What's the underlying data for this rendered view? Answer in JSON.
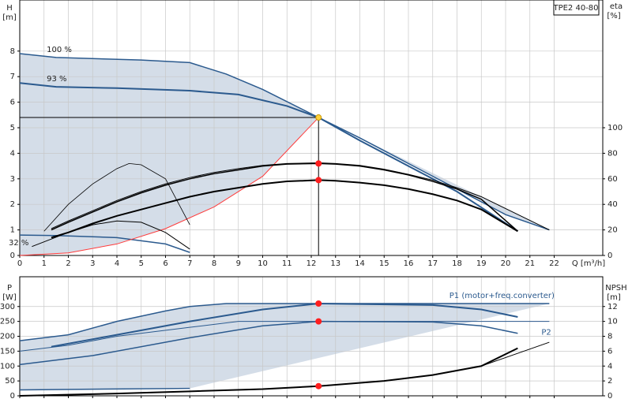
{
  "chart_data": [
    {
      "type": "line",
      "title": "TPE2 40-80",
      "ylabel": "H",
      "yunit": "[m]",
      "y2label": "eta",
      "y2unit": "[%]",
      "xlabel": "Q [m³/h]",
      "xlim": [
        0,
        24
      ],
      "xticks": [
        0,
        1,
        2,
        3,
        4,
        5,
        6,
        7,
        8,
        9,
        10,
        11,
        12,
        13,
        14,
        15,
        16,
        17,
        18,
        19,
        20,
        21,
        22
      ],
      "ylim": [
        0,
        10
      ],
      "yticks": [
        0,
        1,
        2,
        3,
        4,
        5,
        6,
        7,
        8
      ],
      "y2lim": [
        0,
        200
      ],
      "y2ticks": [
        0,
        20,
        40,
        60,
        80,
        100
      ],
      "grid": true,
      "series": [
        {
          "name": "100 %",
          "color": "#2b5a8e",
          "width": 1.5,
          "x": [
            0,
            1.5,
            5,
            7,
            8.5,
            10,
            12.3,
            14,
            16,
            18,
            20,
            21.8
          ],
          "values": [
            7.9,
            7.75,
            7.65,
            7.55,
            7.1,
            6.5,
            5.4,
            4.6,
            3.6,
            2.6,
            1.6,
            1.0
          ]
        },
        {
          "name": "93 %",
          "color": "#2b5a8e",
          "width": 2,
          "x": [
            0,
            1.5,
            4,
            7,
            9,
            11,
            12.3,
            14,
            16,
            18,
            20.5
          ],
          "values": [
            6.75,
            6.6,
            6.55,
            6.45,
            6.3,
            5.85,
            5.4,
            4.5,
            3.5,
            2.5,
            0.95
          ]
        },
        {
          "name": "32 %",
          "color": "#2b5a8e",
          "width": 1.5,
          "x": [
            0,
            1.5,
            4,
            6,
            7
          ],
          "values": [
            0.8,
            0.78,
            0.7,
            0.45,
            0.12
          ]
        },
        {
          "color": "#ff3b3b",
          "width": 1,
          "x": [
            0,
            2,
            4,
            6,
            8,
            10,
            12.3
          ],
          "values": [
            0,
            0.1,
            0.45,
            1.05,
            1.9,
            3.1,
            5.4
          ]
        },
        {
          "color": "#000000",
          "width": 1,
          "axis": "y2",
          "x": [
            1.3,
            2,
            3,
            4,
            5,
            6,
            7,
            8,
            9,
            10,
            11,
            12.3,
            13,
            14,
            15,
            16,
            17,
            18,
            19,
            21.8
          ],
          "values": [
            21,
            27,
            35,
            43,
            50,
            56,
            61,
            65,
            68,
            70.5,
            72,
            72.5,
            72,
            70.5,
            67.5,
            63.5,
            59,
            53,
            46,
            20
          ]
        },
        {
          "color": "#000000",
          "width": 1.5,
          "axis": "y2",
          "x": [
            1.3,
            2,
            3,
            4,
            5,
            6,
            7,
            8,
            9,
            10,
            11,
            12.3,
            13,
            14,
            15,
            16,
            17,
            18,
            19,
            20.5
          ],
          "values": [
            20,
            26,
            34,
            42,
            49,
            55,
            60,
            64,
            67,
            70,
            71.5,
            72,
            71.5,
            70,
            67,
            63,
            58,
            52,
            44,
            19
          ]
        },
        {
          "color": "#000000",
          "width": 2,
          "axis": "y2",
          "x": [
            1.3,
            2,
            3,
            4,
            5,
            6,
            7,
            8,
            9,
            10,
            11,
            12.3,
            13,
            14,
            15,
            16,
            17,
            18,
            19,
            20.5
          ],
          "values": [
            14,
            18,
            25,
            31,
            36,
            41,
            46,
            50,
            53,
            56,
            58,
            59,
            58.5,
            57,
            55,
            52,
            48,
            43,
            36,
            19
          ]
        },
        {
          "color": "#000000",
          "width": 0.8,
          "axis": "y2",
          "x": [
            1,
            2,
            3,
            4,
            4.5,
            5,
            6,
            7
          ],
          "values": [
            19,
            40,
            56,
            68,
            72,
            71,
            60,
            24
          ]
        },
        {
          "color": "#000000",
          "width": 1,
          "axis": "y2",
          "x": [
            0.5,
            2,
            3,
            4,
            5,
            6,
            7
          ],
          "values": [
            7,
            18,
            24,
            27,
            26,
            18,
            5
          ]
        }
      ],
      "markers": [
        {
          "x": 12.3,
          "value": 5.4,
          "color": "#ffd23c"
        },
        {
          "x": 12.3,
          "value": 72,
          "color": "#ff1e1e",
          "axis": "y2"
        },
        {
          "x": 12.3,
          "value": 59,
          "color": "#ff1e1e",
          "axis": "y2"
        }
      ]
    },
    {
      "type": "line",
      "ylabel": "P",
      "yunit": "[W]",
      "y2label": "NPSH",
      "y2unit": "[m]",
      "xlim": [
        0,
        24
      ],
      "xticks": [
        0,
        1,
        2,
        3,
        4,
        5,
        6,
        7,
        8,
        9,
        10,
        11,
        12,
        13,
        14,
        15,
        16,
        17,
        18,
        19,
        20,
        21,
        22
      ],
      "ylim": [
        0,
        400
      ],
      "yticks": [
        0,
        50,
        100,
        150,
        200,
        250,
        300
      ],
      "y2lim": [
        0,
        16
      ],
      "y2ticks": [
        0,
        2,
        4,
        6,
        8,
        10,
        12
      ],
      "grid": true,
      "series": [
        {
          "name": "P1 (motor+freq.converter)",
          "color": "#2b5a8e",
          "width": 1.5,
          "x": [
            0,
            2,
            4,
            6,
            7,
            8.5,
            21.8
          ],
          "values": [
            185,
            205,
            250,
            285,
            300,
            310,
            310
          ]
        },
        {
          "color": "#2b5a8e",
          "width": 2,
          "x": [
            1.3,
            4,
            7,
            10,
            12.3,
            17,
            19,
            20.5
          ],
          "values": [
            165,
            205,
            250,
            290,
            310,
            305,
            290,
            265
          ]
        },
        {
          "name": "P2",
          "color": "#2b5a8e",
          "width": 1,
          "x": [
            0,
            2,
            4,
            7,
            9,
            21.8
          ],
          "values": [
            150,
            170,
            200,
            230,
            250,
            250
          ]
        },
        {
          "color": "#2b5a8e",
          "width": 1.5,
          "x": [
            0,
            3,
            7,
            10,
            12.3,
            17,
            19,
            20.5
          ],
          "values": [
            105,
            135,
            195,
            235,
            250,
            248,
            235,
            210
          ]
        },
        {
          "color": "#2b5a8e",
          "width": 1.5,
          "x": [
            0,
            7
          ],
          "values": [
            20,
            25
          ]
        },
        {
          "color": "#000000",
          "width": 2,
          "axis": "y2",
          "x": [
            0,
            4,
            7,
            10,
            12.3,
            15,
            17,
            19,
            20.5
          ],
          "values": [
            0,
            0.3,
            0.6,
            0.9,
            1.3,
            2.0,
            2.8,
            4.0,
            6.4
          ]
        },
        {
          "color": "#000000",
          "width": 1,
          "axis": "y2",
          "x": [
            19,
            21.8
          ],
          "values": [
            4.0,
            7.2
          ]
        }
      ],
      "markers": [
        {
          "x": 12.3,
          "value": 310,
          "color": "#ff1e1e"
        },
        {
          "x": 12.3,
          "value": 250,
          "color": "#ff1e1e"
        },
        {
          "x": 12.3,
          "value": 1.3,
          "color": "#ff1e1e",
          "axis": "y2"
        }
      ]
    }
  ]
}
